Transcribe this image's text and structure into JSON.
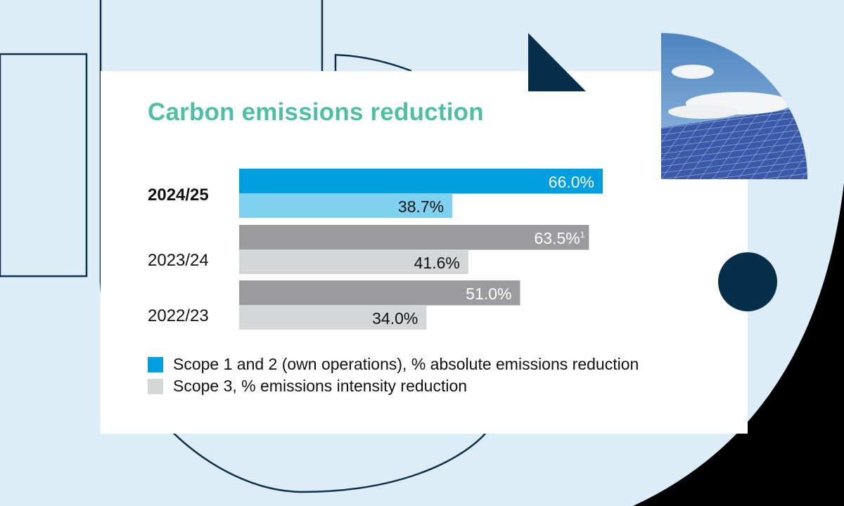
{
  "colors": {
    "background": "#dcedf8",
    "outline": "#0c2f4a",
    "navy": "#062f4b",
    "title": "#4cbfa6"
  },
  "chart_data": {
    "type": "bar",
    "orientation": "horizontal",
    "title": "Carbon emissions reduction",
    "categories": [
      "2024/25",
      "2023/24",
      "2022/23"
    ],
    "highlight_category": "2024/25",
    "series": [
      {
        "name": "Scope 1 and 2 (own operations), % absolute emissions reduction",
        "values": [
          66.0,
          63.5,
          51.0
        ],
        "labels": [
          "66.0%",
          "63.5%",
          "51.0%"
        ],
        "footnotes": [
          "",
          "1",
          ""
        ],
        "colors": [
          "#009fdf",
          "#9c9c9e",
          "#9c9c9e"
        ]
      },
      {
        "name": "Scope 3, % emissions intensity reduction",
        "values": [
          38.7,
          41.6,
          34.0
        ],
        "labels": [
          "38.7%",
          "41.6%",
          "34.0%"
        ],
        "colors": [
          "#80d0f0",
          "#d5d6d8",
          "#d5d6d8"
        ]
      }
    ],
    "xlim": [
      0,
      66
    ],
    "grid": false,
    "legend_position": "bottom-left",
    "legend_swatches": [
      "#009fdf",
      "#d5d6d8"
    ]
  }
}
